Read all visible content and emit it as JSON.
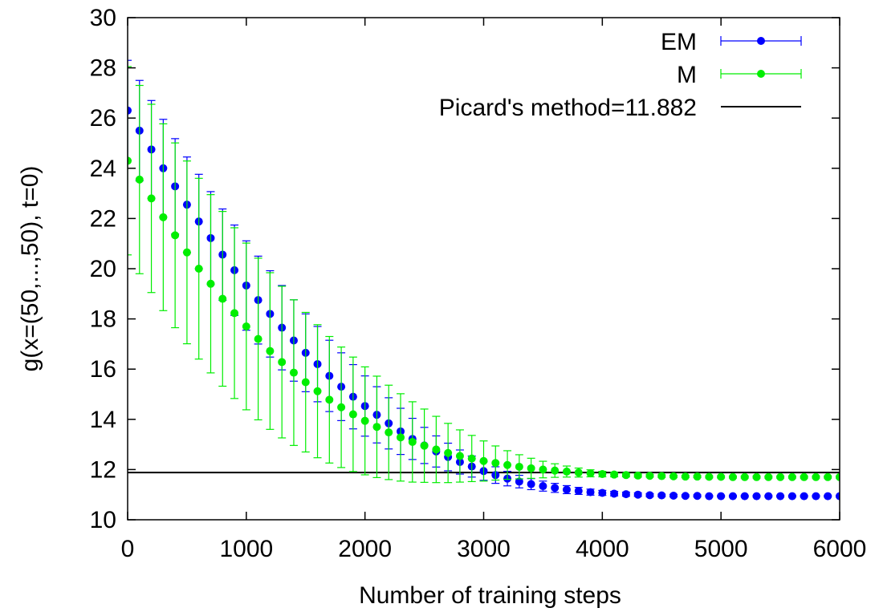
{
  "chart_data": {
    "type": "scatter",
    "xlabel": "Number of training steps",
    "ylabel": "g(x=(50,...,50), t=0)",
    "xlim": [
      0,
      6000
    ],
    "ylim": [
      10,
      30
    ],
    "xticks": [
      0,
      1000,
      2000,
      3000,
      4000,
      5000,
      6000
    ],
    "yticks": [
      10,
      12,
      14,
      16,
      18,
      20,
      22,
      24,
      26,
      28,
      30
    ],
    "legend_position": "top-right",
    "grid": false,
    "x": [
      0,
      100,
      200,
      300,
      400,
      500,
      600,
      700,
      800,
      900,
      1000,
      1100,
      1200,
      1300,
      1400,
      1500,
      1600,
      1700,
      1800,
      1900,
      2000,
      2100,
      2200,
      2300,
      2400,
      2500,
      2600,
      2700,
      2800,
      2900,
      3000,
      3100,
      3200,
      3300,
      3400,
      3500,
      3600,
      3700,
      3800,
      3900,
      4000,
      4100,
      4200,
      4300,
      4400,
      4500,
      4600,
      4700,
      4800,
      4900,
      5000,
      5100,
      5200,
      5300,
      5400,
      5500,
      5600,
      5700,
      5800,
      5900,
      6000
    ],
    "series": [
      {
        "name": "EM",
        "color": "#0000ff",
        "marker": "circle",
        "values": [
          26.3,
          25.5,
          24.75,
          24.0,
          23.28,
          22.55,
          21.88,
          21.22,
          20.56,
          19.94,
          19.33,
          18.75,
          18.2,
          17.65,
          17.14,
          16.65,
          16.2,
          15.73,
          15.3,
          14.9,
          14.53,
          14.18,
          13.84,
          13.52,
          13.22,
          12.96,
          12.72,
          12.5,
          12.3,
          12.12,
          11.94,
          11.78,
          11.64,
          11.52,
          11.42,
          11.34,
          11.27,
          11.2,
          11.15,
          11.1,
          11.07,
          11.04,
          11.02,
          11.0,
          10.98,
          10.97,
          10.96,
          10.95,
          10.95,
          10.94,
          10.94,
          10.94,
          10.94,
          10.94,
          10.94,
          10.94,
          10.94,
          10.94,
          10.94,
          10.94,
          10.94
        ],
        "error": [
          2.0,
          2.0,
          1.95,
          1.95,
          1.9,
          1.9,
          1.88,
          1.85,
          1.82,
          1.8,
          1.78,
          1.75,
          1.72,
          1.68,
          1.62,
          1.55,
          1.5,
          1.42,
          1.35,
          1.28,
          1.2,
          1.12,
          1.02,
          0.92,
          0.82,
          0.72,
          0.62,
          0.55,
          0.48,
          0.42,
          0.37,
          0.33,
          0.29,
          0.25,
          0.22,
          0.2,
          0.18,
          0.16,
          0.14,
          0.12,
          0.1,
          0.09,
          0.08,
          0.07,
          0.06,
          0.05,
          0.05,
          0.04,
          0.04,
          0.03,
          0.03,
          0.03,
          0.03,
          0.03,
          0.03,
          0.03,
          0.03,
          0.03,
          0.03,
          0.03,
          0.03
        ]
      },
      {
        "name": "M",
        "color": "#00ee00",
        "marker": "circle",
        "values": [
          24.3,
          23.55,
          22.8,
          22.05,
          21.33,
          20.65,
          20.0,
          19.4,
          18.8,
          18.23,
          17.7,
          17.2,
          16.72,
          16.28,
          15.86,
          15.48,
          15.12,
          14.78,
          14.48,
          14.2,
          13.94,
          13.7,
          13.48,
          13.28,
          13.1,
          12.95,
          12.8,
          12.66,
          12.54,
          12.44,
          12.34,
          12.26,
          12.18,
          12.11,
          12.05,
          12.0,
          11.96,
          11.92,
          11.88,
          11.85,
          11.82,
          11.8,
          11.78,
          11.76,
          11.75,
          11.74,
          11.73,
          11.72,
          11.72,
          11.71,
          11.71,
          11.7,
          11.7,
          11.7,
          11.7,
          11.7,
          11.7,
          11.7,
          11.7,
          11.7,
          11.7
        ],
        "error": [
          3.75,
          3.75,
          3.75,
          3.72,
          3.68,
          3.64,
          3.6,
          3.55,
          3.48,
          3.4,
          3.32,
          3.22,
          3.12,
          3.02,
          2.9,
          2.78,
          2.65,
          2.52,
          2.4,
          2.28,
          2.15,
          2.02,
          1.88,
          1.74,
          1.6,
          1.46,
          1.32,
          1.18,
          1.04,
          0.92,
          0.8,
          0.68,
          0.57,
          0.48,
          0.4,
          0.33,
          0.27,
          0.22,
          0.18,
          0.14,
          0.11,
          0.09,
          0.07,
          0.06,
          0.05,
          0.05,
          0.04,
          0.04,
          0.04,
          0.04,
          0.04,
          0.04,
          0.04,
          0.04,
          0.04,
          0.04,
          0.04,
          0.04,
          0.04,
          0.04,
          0.04
        ]
      }
    ],
    "reference_line": {
      "name": "Picard's method=11.882",
      "value": 11.882,
      "color": "#000000"
    }
  }
}
